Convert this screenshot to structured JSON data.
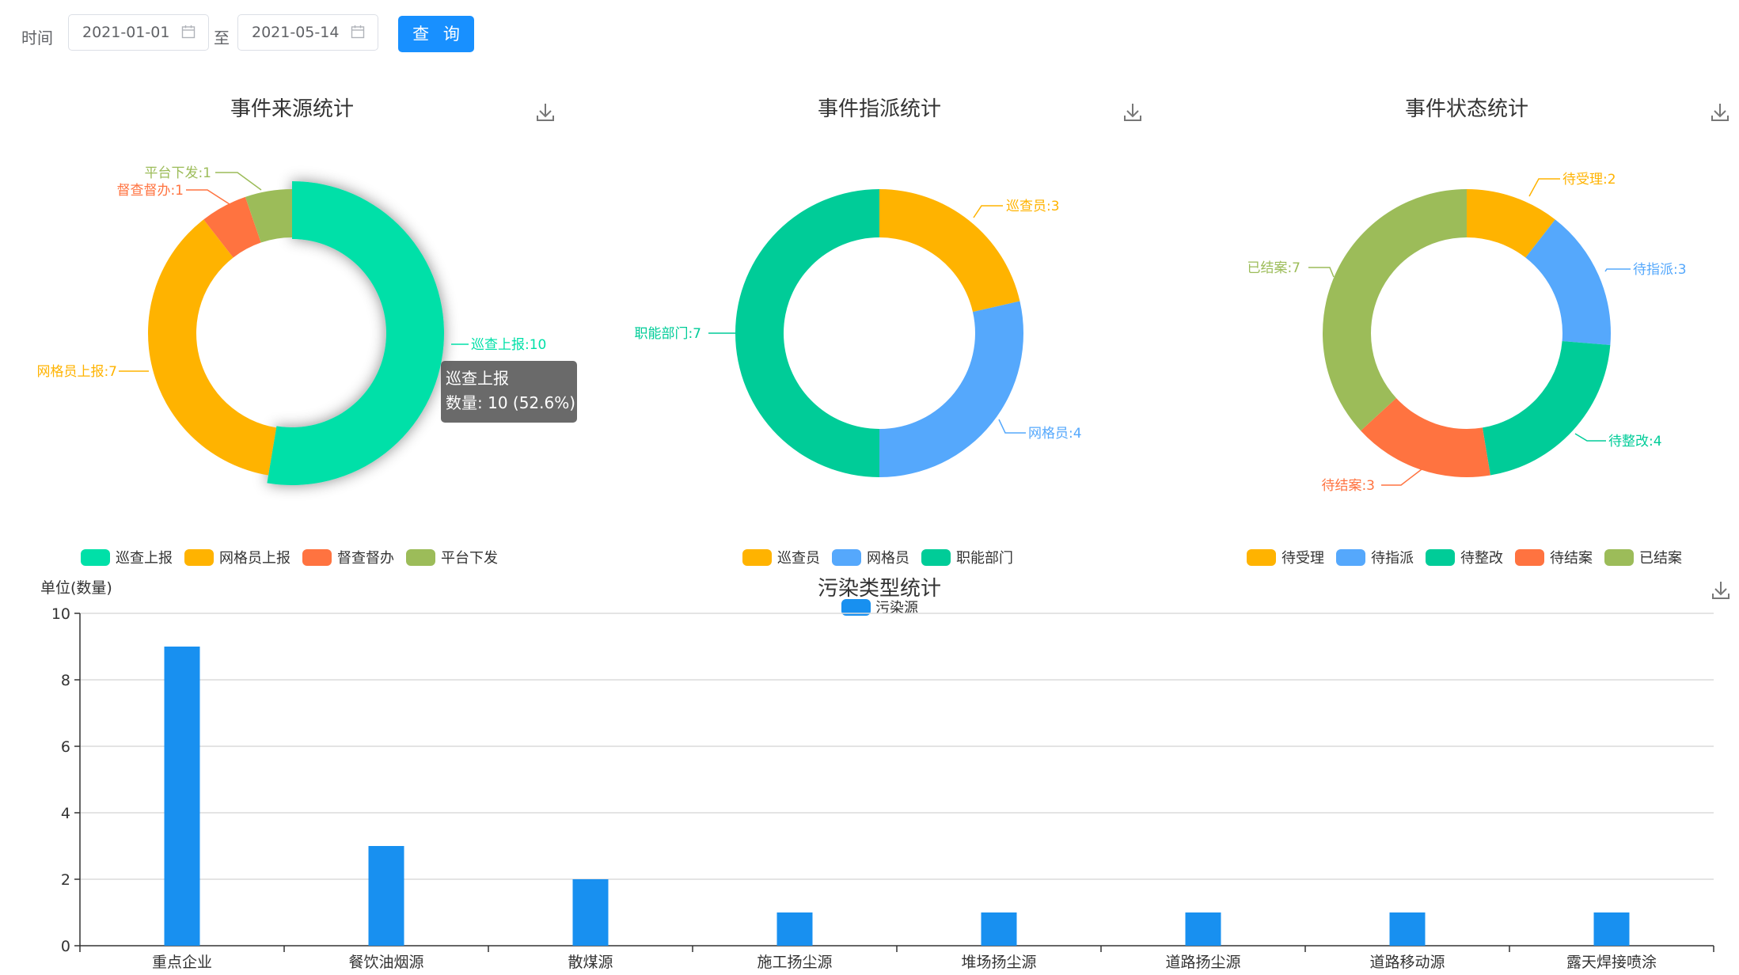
{
  "filter": {
    "time_label": "时间",
    "start_date": "2021-01-01",
    "separator": "至",
    "end_date": "2021-05-14",
    "query_label": "查 询"
  },
  "icons": {
    "calendar": "calendar-icon",
    "download": "download-icon"
  },
  "chart_data": [
    {
      "type": "pie",
      "variant": "donut",
      "title": "事件来源统计",
      "legend_position": "bottom",
      "slices": [
        {
          "name": "巡查上报",
          "value": 10,
          "color": "#00e0a8",
          "label": "巡查上报:10"
        },
        {
          "name": "网格员上报",
          "value": 7,
          "color": "#ffb300",
          "label": "网格员上报:7"
        },
        {
          "name": "督查督办",
          "value": 1,
          "color": "#ff7340",
          "label": "督查督办:1"
        },
        {
          "name": "平台下发",
          "value": 1,
          "color": "#9cbc59",
          "label": "平台下发:1"
        }
      ],
      "highlighted": "巡查上报",
      "tooltip": {
        "title": "巡查上报",
        "text": "数量: 10 (52.6%)"
      }
    },
    {
      "type": "pie",
      "variant": "donut",
      "title": "事件指派统计",
      "legend_position": "bottom",
      "slices": [
        {
          "name": "巡查员",
          "value": 3,
          "color": "#ffb300",
          "label": "巡查员:3"
        },
        {
          "name": "网格员",
          "value": 4,
          "color": "#55a8fc",
          "label": "网格员:4"
        },
        {
          "name": "职能部门",
          "value": 7,
          "color": "#00cc98",
          "label": "职能部门:7"
        }
      ]
    },
    {
      "type": "pie",
      "variant": "donut",
      "title": "事件状态统计",
      "legend_position": "bottom",
      "slices": [
        {
          "name": "待受理",
          "value": 2,
          "color": "#ffb300",
          "label": "待受理:2"
        },
        {
          "name": "待指派",
          "value": 3,
          "color": "#55a8fc",
          "label": "待指派:3"
        },
        {
          "name": "待整改",
          "value": 4,
          "color": "#00cc98",
          "label": "待整改:4"
        },
        {
          "name": "待结案",
          "value": 3,
          "color": "#ff7340",
          "label": "待结案:3"
        },
        {
          "name": "已结案",
          "value": 7,
          "color": "#9cbc59",
          "label": "已结案:7"
        }
      ]
    },
    {
      "type": "bar",
      "title": "污染类型统计",
      "ylabel": "单位(数量)",
      "ylim": [
        0,
        10
      ],
      "yticks": [
        0,
        2,
        4,
        6,
        8,
        10
      ],
      "grid": true,
      "legend_position": "top-center",
      "categories": [
        "重点企业",
        "餐饮油烟源",
        "散煤源",
        "施工扬尘源",
        "堆场扬尘源",
        "道路扬尘源",
        "道路移动源",
        "露天焊接喷涂"
      ],
      "series": [
        {
          "name": "污染源",
          "color": "#1890f0",
          "values": [
            9,
            3,
            2,
            1,
            1,
            1,
            1,
            1
          ]
        }
      ]
    }
  ]
}
